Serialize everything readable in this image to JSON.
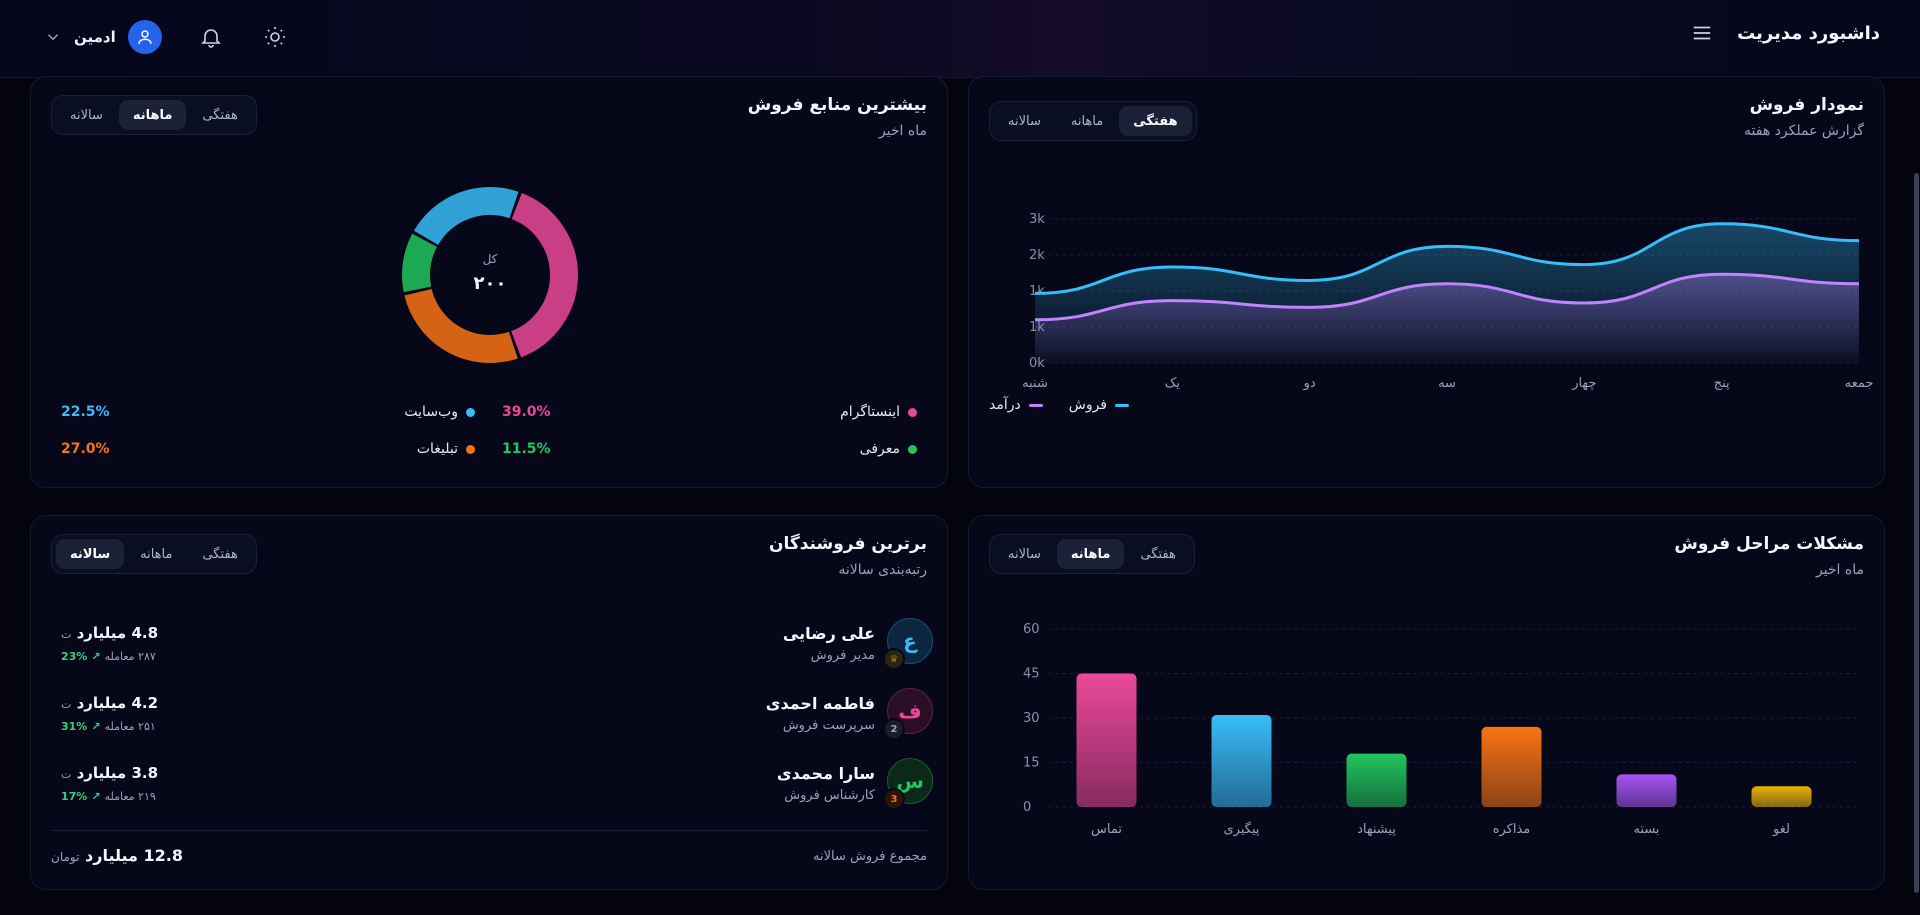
{
  "header": {
    "title": "داشبورد مدیریت",
    "user_name": "ادمین"
  },
  "sales_chart": {
    "title": "نمودار فروش",
    "subtitle": "گزارش عملکرد هفته",
    "tabs": [
      "هفتگی",
      "ماهانه",
      "سالانه"
    ],
    "active_tab": "هفتگی",
    "legend": [
      "فروش",
      "درآمد"
    ],
    "colors": {
      "sales": "#38bdf8",
      "revenue": "#c084fc"
    }
  },
  "top_sources": {
    "title": "بیشترین منابع فروش",
    "subtitle": "ماه اخیر",
    "tabs": [
      "هفتگی",
      "ماهانه",
      "سالانه"
    ],
    "active_tab": "ماهانه",
    "center_label": "کل",
    "center_value": "۲۰۰",
    "items": [
      {
        "label": "اینستاگرام",
        "pct": "39.0%",
        "color": "#ec4899"
      },
      {
        "label": "وب‌سایت",
        "pct": "22.5%",
        "color": "#38bdf8"
      },
      {
        "label": "معرفی",
        "pct": "11.5%",
        "color": "#22c55e"
      },
      {
        "label": "تبلیغات",
        "pct": "27.0%",
        "color": "#f97316"
      }
    ]
  },
  "stage_issues": {
    "title": "مشکلات مراحل فروش",
    "subtitle": "ماه اخیر",
    "tabs": [
      "هفتگی",
      "ماهانه",
      "سالانه"
    ],
    "active_tab": "ماهانه"
  },
  "top_sellers": {
    "title": "برترین فروشندگان",
    "subtitle": "رتبه‌بندی سالانه",
    "tabs": [
      "هفتگی",
      "ماهانه",
      "سالانه"
    ],
    "active_tab": "سالانه",
    "sellers": [
      {
        "initial": "ع",
        "name": "علی رضایی",
        "role": "مدیر فروش",
        "rank": "♕",
        "amount": "4.8 میلیارد",
        "unit": "ت",
        "deals": "۲۸۷ معامله",
        "growth": "23%",
        "color": "#38bdf8"
      },
      {
        "initial": "ف",
        "name": "فاطمه احمدی",
        "role": "سرپرست فروش",
        "rank": "2",
        "amount": "4.2 میلیارد",
        "unit": "ت",
        "deals": "۲۵۱ معامله",
        "growth": "31%",
        "color": "#ec4899"
      },
      {
        "initial": "س",
        "name": "سارا محمدی",
        "role": "کارشناس فروش",
        "rank": "3",
        "amount": "3.8 میلیارد",
        "unit": "ت",
        "deals": "۲۱۹ معامله",
        "growth": "17%",
        "color": "#22c55e"
      }
    ],
    "total_label": "مجموع فروش سالانه",
    "total_value": "12.8 میلیارد",
    "total_unit": "تومان"
  },
  "chart_data": [
    {
      "type": "area",
      "categories": [
        "شنبه",
        "یک",
        "دو",
        "سه",
        "چهار",
        "پنج",
        "جمعه"
      ],
      "y_tick_labels": [
        "0k",
        "1k",
        "1k",
        "2k",
        "3k"
      ],
      "ylim": [
        0,
        3000
      ],
      "series": [
        {
          "name": "فروش",
          "values": [
            1450,
            2000,
            1720,
            2430,
            2050,
            2900,
            2550
          ]
        },
        {
          "name": "درآمد",
          "values": [
            900,
            1300,
            1160,
            1650,
            1250,
            1850,
            1650
          ]
        }
      ],
      "grid": true,
      "legend_position": "bottom-right"
    },
    {
      "type": "pie",
      "labels": [
        "اینستاگرام",
        "تبلیغات",
        "معرفی",
        "وب‌سایت"
      ],
      "values": [
        39.0,
        27.0,
        11.5,
        22.5
      ],
      "center_text": "۲۰۰"
    },
    {
      "type": "bar",
      "categories": [
        "تماس",
        "پیگیری",
        "پیشنهاد",
        "مذاکره",
        "بسته",
        "لغو"
      ],
      "values": [
        45,
        31,
        18,
        27,
        11,
        7
      ],
      "colors": [
        "#ec4899",
        "#38bdf8",
        "#22c55e",
        "#f97316",
        "#a855f7",
        "#eab308"
      ],
      "y_ticks": [
        0,
        15,
        30,
        45,
        60
      ],
      "ylim": [
        0,
        60
      ],
      "grid": true
    }
  ]
}
